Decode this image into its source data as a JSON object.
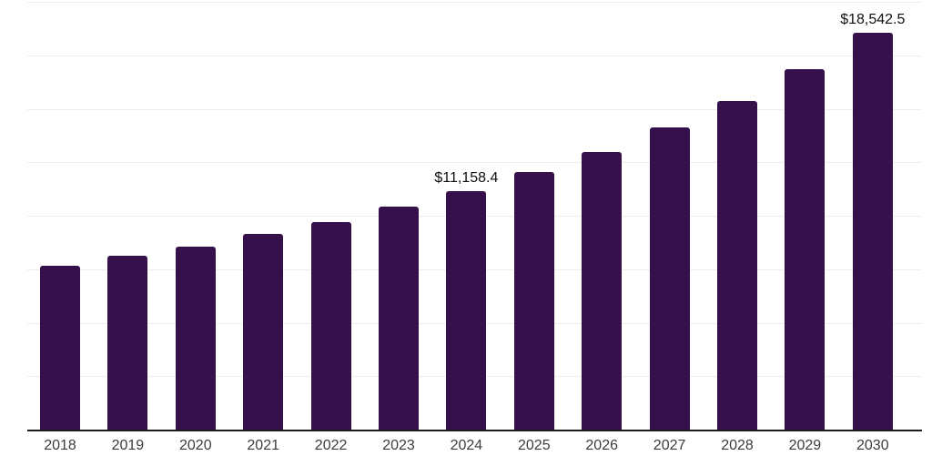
{
  "chart": {
    "background_color": "#ffffff",
    "bar_color": "#35104a",
    "gridline_color": "#ededed",
    "axis_color": "#1d1d1d",
    "year_label_color": "#3c3c3c",
    "value_label_color": "#0f0f0f"
  },
  "chart_data": {
    "type": "bar",
    "title": "",
    "xlabel": "",
    "ylabel": "",
    "categories": [
      "2018",
      "2019",
      "2020",
      "2021",
      "2022",
      "2023",
      "2024",
      "2025",
      "2026",
      "2027",
      "2028",
      "2029",
      "2030"
    ],
    "values": [
      7680,
      8110,
      8570,
      9140,
      9700,
      10410,
      11158.4,
      12030,
      12970,
      14120,
      15370,
      16840,
      18542.5
    ],
    "data_labels": [
      {
        "category": "2024",
        "text": "$11,158.4"
      },
      {
        "category": "2030",
        "text": "$18,542.5"
      }
    ],
    "ylim": [
      0,
      20000
    ],
    "gridline_interval": 2500,
    "grid": "horizontal",
    "legend": "none",
    "y_axis_tick_labels_visible": false,
    "note": "Only the 2024 and 2030 bars show data labels; remaining values estimated from gridlines"
  }
}
